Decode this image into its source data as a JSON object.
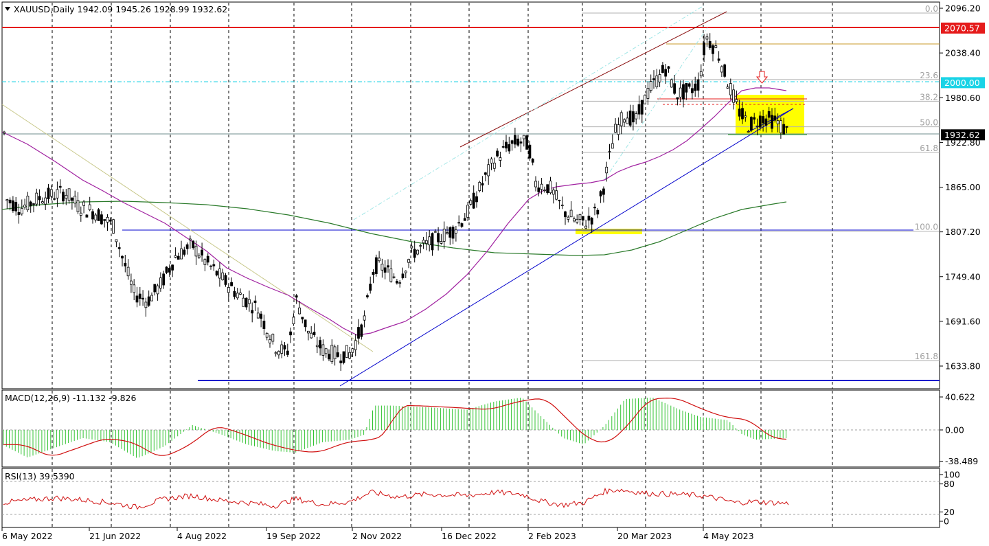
{
  "header": {
    "symbol_line": "XAUUSD,Daily  1942.09 1945.26 1928.99 1932.62"
  },
  "chart_data": {
    "type": "candlestick",
    "symbol": "XAUUSD",
    "timeframe": "Daily",
    "ohlc_last": {
      "open": 1942.09,
      "high": 1945.26,
      "low": 1928.99,
      "close": 1932.62
    },
    "price_axis": {
      "ticks": [
        "2096.20",
        "2038.40",
        "1980.60",
        "1922.80",
        "1865.00",
        "1807.20",
        "1749.40",
        "1691.60",
        "1633.80"
      ],
      "ylim": [
        1612,
        2103
      ]
    },
    "time_axis": {
      "labels": [
        "6 May 2022",
        "21 Jun 2022",
        "4 Aug 2022",
        "19 Sep 2022",
        "2 Nov 2022",
        "16 Dec 2022",
        "2 Feb 2023",
        "20 Mar 2023",
        "4 May 2023"
      ]
    },
    "price_labels": [
      {
        "text": "2070.57",
        "value": 2070.57,
        "color": "#e51b1b"
      },
      {
        "text": "2000.00",
        "value": 2000.0,
        "color": "#19d3e6"
      },
      {
        "text": "1932.62",
        "value": 1932.62,
        "color": "#000000"
      }
    ],
    "fibonacci": [
      {
        "level": "0.0",
        "price": 2090
      },
      {
        "level": "23.6",
        "price": 2004
      },
      {
        "level": "38.2",
        "price": 1976
      },
      {
        "level": "50.0",
        "price": 1943
      },
      {
        "level": "61.8",
        "price": 1910
      },
      {
        "level": "100.0",
        "price": 1808
      },
      {
        "level": "161.8",
        "price": 1641
      }
    ],
    "macd": {
      "label": "MACD(12,26,9) -11.132 -9.826",
      "ticks": [
        "40.622",
        "0.00",
        "-38.489"
      ],
      "ylim": [
        -52,
        56
      ]
    },
    "rsi": {
      "label": "RSI(13) 39.5390",
      "ticks": [
        "100",
        "80",
        "20",
        "0"
      ],
      "ylim": [
        0,
        100
      ]
    },
    "colors": {
      "candle": "#000000",
      "ma_purple": "#a020a0",
      "ma_green": "#2a7a2a",
      "trend_blue": "#0000cc",
      "resistance_red": "#e51b1b",
      "macd_hist": "#33c333",
      "macd_signal": "#d01010",
      "rsi_line": "#d01010",
      "highlight": "#ffff00"
    }
  }
}
